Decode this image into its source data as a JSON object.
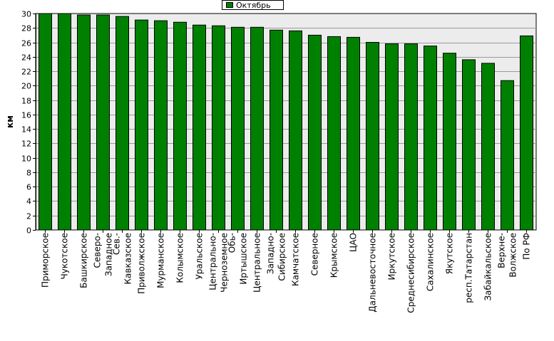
{
  "chart_data": {
    "type": "bar",
    "title": "",
    "xlabel": "",
    "ylabel": "км",
    "ylim": [
      0,
      30
    ],
    "ytick_step": 2,
    "grid": true,
    "legend": "top",
    "categories": [
      [
        "Приморское"
      ],
      [
        "Чукотское"
      ],
      [
        "Башкирское"
      ],
      [
        "Северо-",
        "Западное"
      ],
      [
        "Сев.-",
        "Кавказское"
      ],
      [
        "Приволжское"
      ],
      [
        "Мурманское"
      ],
      [
        "Колымское"
      ],
      [
        "Уральское"
      ],
      [
        "Центрально-",
        "Черноземное"
      ],
      [
        "Обь-",
        "Иртышское"
      ],
      [
        "Центральное"
      ],
      [
        "Западно-",
        "Сибирское"
      ],
      [
        "Камчатское"
      ],
      [
        "Северное"
      ],
      [
        "Крымское"
      ],
      [
        "ЦАО"
      ],
      [
        "Дальневосточное"
      ],
      [
        "Иркутское"
      ],
      [
        "Среднесибирское"
      ],
      [
        "Сахалинское"
      ],
      [
        "Якутское"
      ],
      [
        "респ.Татарстан"
      ],
      [
        "Забайкальское"
      ],
      [
        "Верхне-",
        "Волжское"
      ],
      [
        "По РФ"
      ]
    ],
    "series": [
      {
        "name": "Октябрь",
        "color": "#008000",
        "values": [
          30.0,
          30.0,
          29.8,
          29.8,
          29.6,
          29.1,
          29.0,
          28.8,
          28.4,
          28.3,
          28.1,
          28.1,
          27.7,
          27.6,
          27.0,
          26.8,
          26.7,
          26.0,
          25.8,
          25.8,
          25.5,
          24.5,
          23.6,
          23.1,
          20.7,
          26.9
        ]
      }
    ],
    "colors": {
      "plot_bg": "#ececec",
      "bar_fill": "#008000",
      "bar_edge": "#000000",
      "grid": "#9a9a9a"
    }
  }
}
